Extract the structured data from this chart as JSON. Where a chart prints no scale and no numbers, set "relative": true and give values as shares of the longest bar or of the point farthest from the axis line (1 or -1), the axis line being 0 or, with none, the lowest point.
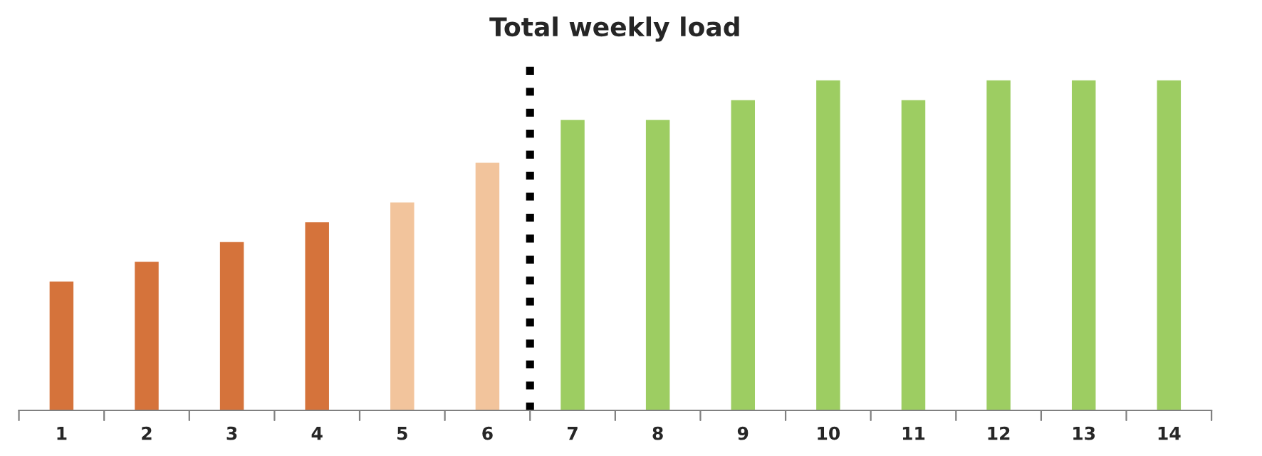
{
  "chart_data": {
    "type": "bar",
    "title": "Total weekly load",
    "relative": true,
    "x": [
      1,
      2,
      3,
      4,
      5,
      6,
      7,
      8,
      9,
      10,
      11,
      12,
      13,
      14
    ],
    "values": [
      0.39,
      0.45,
      0.51,
      0.57,
      0.63,
      0.75,
      0.88,
      0.88,
      0.94,
      1,
      0.94,
      1,
      1,
      1
    ],
    "colors": [
      "#d5733b",
      "#d5733b",
      "#d5733b",
      "#d5733b",
      "#f2c49c",
      "#f2c49c",
      "#9dcd62",
      "#9dcd62",
      "#9dcd62",
      "#9dcd62",
      "#9dcd62",
      "#9dcd62",
      "#9dcd62",
      "#9dcd62"
    ],
    "xlim": [
      0.5,
      14.5
    ],
    "xticks": [
      {
        "value": 0.5,
        "label": null
      },
      1,
      {
        "value": 1.5,
        "label": null
      },
      2,
      {
        "value": 2.5,
        "label": null
      },
      3,
      {
        "value": 3.5,
        "label": null
      },
      4,
      {
        "value": 4.5,
        "label": null
      },
      5,
      {
        "value": 5.5,
        "label": null
      },
      6,
      {
        "value": 6.5,
        "label": null
      },
      7,
      {
        "value": 7.5,
        "label": null
      },
      8,
      {
        "value": 8.5,
        "label": null
      },
      9,
      {
        "value": 9.5,
        "label": null
      },
      10,
      {
        "value": 10.5,
        "label": null
      },
      11,
      {
        "value": 11.5,
        "label": null
      },
      12,
      {
        "value": 12.5,
        "label": null
      },
      13,
      {
        "value": 13.5,
        "label": null
      },
      14,
      {
        "value": 14.5,
        "label": null
      }
    ],
    "ref_lines": [
      {
        "axis": "x",
        "value": 6.5,
        "color": "#000000",
        "line_style": "dotted"
      }
    ],
    "grid": false,
    "legend": false
  }
}
